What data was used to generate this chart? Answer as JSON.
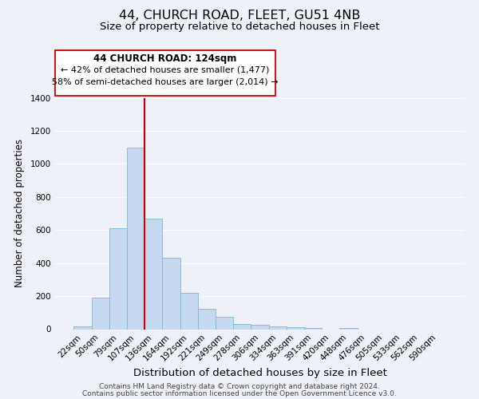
{
  "title": "44, CHURCH ROAD, FLEET, GU51 4NB",
  "subtitle": "Size of property relative to detached houses in Fleet",
  "xlabel": "Distribution of detached houses by size in Fleet",
  "ylabel": "Number of detached properties",
  "bar_labels": [
    "22sqm",
    "50sqm",
    "79sqm",
    "107sqm",
    "136sqm",
    "164sqm",
    "192sqm",
    "221sqm",
    "249sqm",
    "278sqm",
    "306sqm",
    "334sqm",
    "363sqm",
    "391sqm",
    "420sqm",
    "448sqm",
    "476sqm",
    "505sqm",
    "533sqm",
    "562sqm",
    "590sqm"
  ],
  "bar_values": [
    15,
    190,
    610,
    1100,
    670,
    430,
    220,
    125,
    75,
    30,
    25,
    15,
    10,
    5,
    0,
    5,
    0,
    0,
    0,
    0,
    0
  ],
  "bar_color": "#c5d8f0",
  "bar_edge_color": "#7ab8d8",
  "vline_color": "#cc0000",
  "annotation_title": "44 CHURCH ROAD: 124sqm",
  "annotation_line1": "← 42% of detached houses are smaller (1,477)",
  "annotation_line2": "58% of semi-detached houses are larger (2,014) →",
  "annotation_box_color": "#ffffff",
  "annotation_box_edge": "#cc0000",
  "ylim": [
    0,
    1400
  ],
  "yticks": [
    0,
    200,
    400,
    600,
    800,
    1000,
    1200,
    1400
  ],
  "footer1": "Contains HM Land Registry data © Crown copyright and database right 2024.",
  "footer2": "Contains public sector information licensed under the Open Government Licence v3.0.",
  "background_color": "#eef2f8",
  "grid_color": "#ffffff",
  "title_fontsize": 11.5,
  "subtitle_fontsize": 9.5,
  "xlabel_fontsize": 9.5,
  "ylabel_fontsize": 8.5,
  "tick_fontsize": 7.5,
  "footer_fontsize": 6.5
}
